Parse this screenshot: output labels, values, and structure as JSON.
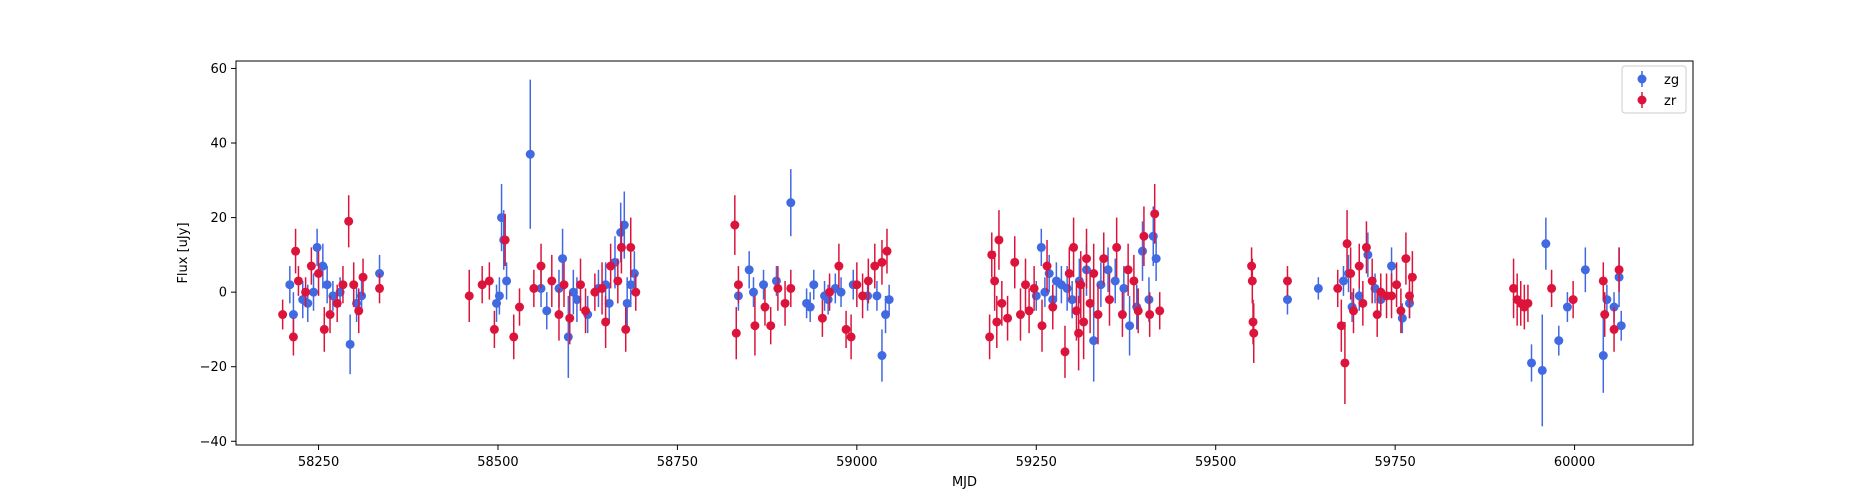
{
  "colors": {
    "zg": "#4169e1",
    "zr": "#dc143c",
    "axis": "#000000"
  },
  "chart_data": {
    "type": "scatter",
    "title": "",
    "xlabel": "MJD",
    "ylabel": "Flux [uJy]",
    "xlim": [
      58135,
      60165
    ],
    "ylim": [
      -41,
      62
    ],
    "xticks": [
      58250,
      58500,
      58750,
      59000,
      59250,
      59500,
      59750,
      60000
    ],
    "xtick_labels": [
      "58250",
      "58500",
      "58750",
      "59000",
      "59250",
      "59500",
      "59750",
      "60000"
    ],
    "yticks": [
      -40,
      -20,
      0,
      20,
      40,
      60
    ],
    "ytick_labels": [
      "−40",
      "−20",
      "0",
      "20",
      "40",
      "60"
    ],
    "grid": false,
    "legend": {
      "placement": "top-right",
      "entries": [
        "zg",
        "zr"
      ]
    },
    "error_bars": true,
    "series": [
      {
        "name": "zg",
        "color": "#4169e1",
        "points": [
          [
            58210,
            2,
            5
          ],
          [
            58215,
            -6,
            6
          ],
          [
            58228,
            -2,
            5
          ],
          [
            58235,
            -3,
            5
          ],
          [
            58243,
            0,
            5
          ],
          [
            58248,
            12,
            5
          ],
          [
            58256,
            7,
            6
          ],
          [
            58262,
            2,
            5
          ],
          [
            58270,
            -1,
            4
          ],
          [
            58280,
            0,
            4
          ],
          [
            58294,
            -14,
            8
          ],
          [
            58303,
            -3,
            5
          ],
          [
            58310,
            -1,
            4
          ],
          [
            58335,
            5,
            5
          ],
          [
            58498,
            -3,
            5
          ],
          [
            58502,
            -1,
            5
          ],
          [
            58505,
            20,
            9
          ],
          [
            58508,
            14,
            8
          ],
          [
            58512,
            3,
            5
          ],
          [
            58545,
            37,
            20
          ],
          [
            58560,
            1,
            5
          ],
          [
            58568,
            -5,
            5
          ],
          [
            58585,
            1,
            5
          ],
          [
            58590,
            9,
            8
          ],
          [
            58598,
            -12,
            11
          ],
          [
            58605,
            0,
            6
          ],
          [
            58610,
            -2,
            6
          ],
          [
            58625,
            -6,
            5
          ],
          [
            58640,
            1,
            5
          ],
          [
            58650,
            2,
            6
          ],
          [
            58655,
            -3,
            5
          ],
          [
            58663,
            8,
            7
          ],
          [
            58671,
            16,
            8
          ],
          [
            58676,
            18,
            9
          ],
          [
            58680,
            -3,
            7
          ],
          [
            58685,
            2,
            6
          ],
          [
            58690,
            5,
            6
          ],
          [
            58835,
            -1,
            4
          ],
          [
            58850,
            6,
            5
          ],
          [
            58856,
            0,
            4
          ],
          [
            58870,
            2,
            4
          ],
          [
            58888,
            3,
            4
          ],
          [
            58908,
            24,
            9
          ],
          [
            58930,
            -3,
            4
          ],
          [
            58935,
            -4,
            4
          ],
          [
            58940,
            2,
            4
          ],
          [
            58955,
            -1,
            4
          ],
          [
            58960,
            -2,
            4
          ],
          [
            58970,
            1,
            4
          ],
          [
            58978,
            0,
            4
          ],
          [
            58995,
            2,
            4
          ],
          [
            59015,
            -1,
            4
          ],
          [
            59028,
            -1,
            4
          ],
          [
            59035,
            -17,
            7
          ],
          [
            59040,
            -6,
            5
          ],
          [
            59045,
            -2,
            4
          ],
          [
            59250,
            -1,
            4
          ],
          [
            59257,
            12,
            5
          ],
          [
            59262,
            0,
            4
          ],
          [
            59268,
            5,
            5
          ],
          [
            59273,
            -2,
            4
          ],
          [
            59278,
            3,
            5
          ],
          [
            59285,
            2,
            5
          ],
          [
            59293,
            1,
            6
          ],
          [
            59300,
            -2,
            5
          ],
          [
            59310,
            3,
            6
          ],
          [
            59320,
            6,
            7
          ],
          [
            59330,
            -13,
            11
          ],
          [
            59340,
            2,
            6
          ],
          [
            59350,
            6,
            6
          ],
          [
            59360,
            3,
            6
          ],
          [
            59372,
            1,
            6
          ],
          [
            59380,
            -9,
            8
          ],
          [
            59390,
            -4,
            6
          ],
          [
            59398,
            11,
            8
          ],
          [
            59407,
            -2,
            6
          ],
          [
            59413,
            15,
            8
          ],
          [
            59417,
            9,
            6
          ],
          [
            59600,
            -2,
            4
          ],
          [
            59643,
            1,
            3
          ],
          [
            59678,
            3,
            4
          ],
          [
            59685,
            5,
            5
          ],
          [
            59690,
            -4,
            4
          ],
          [
            59700,
            -1,
            4
          ],
          [
            59712,
            10,
            6
          ],
          [
            59722,
            1,
            4
          ],
          [
            59730,
            -2,
            4
          ],
          [
            59745,
            7,
            5
          ],
          [
            59760,
            -7,
            4
          ],
          [
            59770,
            -3,
            4
          ],
          [
            59940,
            -19,
            5
          ],
          [
            59955,
            -21,
            15
          ],
          [
            59960,
            13,
            7
          ],
          [
            59978,
            -13,
            4
          ],
          [
            59990,
            -4,
            4
          ],
          [
            60015,
            6,
            6
          ],
          [
            60040,
            -17,
            10
          ],
          [
            60045,
            -2,
            4
          ],
          [
            60055,
            -4,
            4
          ],
          [
            60062,
            4,
            8
          ],
          [
            60065,
            -9,
            4
          ]
        ]
      },
      {
        "name": "zr",
        "color": "#dc143c",
        "points": [
          [
            58200,
            -6,
            4
          ],
          [
            58215,
            -12,
            5
          ],
          [
            58218,
            11,
            6
          ],
          [
            58222,
            3,
            4
          ],
          [
            58232,
            0,
            4
          ],
          [
            58240,
            7,
            5
          ],
          [
            58250,
            5,
            6
          ],
          [
            58258,
            -10,
            6
          ],
          [
            58266,
            -6,
            5
          ],
          [
            58276,
            -3,
            5
          ],
          [
            58284,
            2,
            5
          ],
          [
            58292,
            19,
            7
          ],
          [
            58299,
            2,
            6
          ],
          [
            58306,
            -5,
            6
          ],
          [
            58312,
            4,
            5
          ],
          [
            58335,
            1,
            4
          ],
          [
            58460,
            -1,
            7
          ],
          [
            58478,
            2,
            5
          ],
          [
            58488,
            3,
            5
          ],
          [
            58495,
            -10,
            5
          ],
          [
            58510,
            14,
            7
          ],
          [
            58522,
            -12,
            6
          ],
          [
            58530,
            -4,
            5
          ],
          [
            58550,
            1,
            5
          ],
          [
            58560,
            7,
            6
          ],
          [
            58575,
            3,
            7
          ],
          [
            58585,
            -6,
            7
          ],
          [
            58592,
            2,
            6
          ],
          [
            58600,
            -7,
            7
          ],
          [
            58615,
            2,
            7
          ],
          [
            58622,
            -5,
            6
          ],
          [
            58635,
            0,
            5
          ],
          [
            58645,
            1,
            7
          ],
          [
            58650,
            -8,
            7
          ],
          [
            58657,
            7,
            6
          ],
          [
            58667,
            3,
            6
          ],
          [
            58672,
            12,
            7
          ],
          [
            58678,
            -10,
            6
          ],
          [
            58685,
            12,
            8
          ],
          [
            58692,
            0,
            5
          ],
          [
            58830,
            18,
            8
          ],
          [
            58832,
            -11,
            7
          ],
          [
            58835,
            2,
            5
          ],
          [
            58858,
            -9,
            8
          ],
          [
            58872,
            -4,
            5
          ],
          [
            58880,
            -9,
            5
          ],
          [
            58890,
            1,
            6
          ],
          [
            58900,
            -3,
            6
          ],
          [
            58908,
            1,
            5
          ],
          [
            58952,
            -7,
            5
          ],
          [
            58962,
            0,
            5
          ],
          [
            58975,
            7,
            6
          ],
          [
            58985,
            -10,
            5
          ],
          [
            58992,
            -12,
            6
          ],
          [
            59000,
            2,
            6
          ],
          [
            59008,
            -1,
            6
          ],
          [
            59016,
            3,
            6
          ],
          [
            59025,
            7,
            6
          ],
          [
            59035,
            8,
            6
          ],
          [
            59042,
            11,
            6
          ],
          [
            59185,
            -12,
            6
          ],
          [
            59188,
            10,
            6
          ],
          [
            59192,
            3,
            8
          ],
          [
            59195,
            -8,
            7
          ],
          [
            59198,
            14,
            8
          ],
          [
            59202,
            -3,
            6
          ],
          [
            59210,
            -7,
            6
          ],
          [
            59220,
            8,
            7
          ],
          [
            59228,
            -6,
            7
          ],
          [
            59235,
            2,
            7
          ],
          [
            59240,
            -5,
            6
          ],
          [
            59247,
            1,
            6
          ],
          [
            59258,
            -9,
            7
          ],
          [
            59265,
            7,
            7
          ],
          [
            59273,
            -4,
            6
          ],
          [
            59290,
            -16,
            7
          ],
          [
            59296,
            5,
            7
          ],
          [
            59302,
            12,
            8
          ],
          [
            59306,
            -5,
            8
          ],
          [
            59309,
            -11,
            10
          ],
          [
            59312,
            2,
            9
          ],
          [
            59316,
            -8,
            10
          ],
          [
            59320,
            9,
            8
          ],
          [
            59325,
            -3,
            8
          ],
          [
            59330,
            5,
            8
          ],
          [
            59336,
            -6,
            8
          ],
          [
            59344,
            9,
            7
          ],
          [
            59352,
            -2,
            7
          ],
          [
            59362,
            12,
            8
          ],
          [
            59370,
            -6,
            6
          ],
          [
            59378,
            6,
            7
          ],
          [
            59386,
            3,
            7
          ],
          [
            59392,
            -5,
            6
          ],
          [
            59400,
            15,
            8
          ],
          [
            59408,
            -6,
            6
          ],
          [
            59415,
            21,
            8
          ],
          [
            59422,
            -5,
            5
          ],
          [
            59550,
            7,
            5
          ],
          [
            59551,
            3,
            6
          ],
          [
            59552,
            -8,
            6
          ],
          [
            59553,
            -11,
            8
          ],
          [
            59600,
            3,
            4
          ],
          [
            59670,
            1,
            5
          ],
          [
            59675,
            -9,
            7
          ],
          [
            59680,
            -19,
            11
          ],
          [
            59683,
            13,
            9
          ],
          [
            59688,
            5,
            7
          ],
          [
            59692,
            -5,
            6
          ],
          [
            59700,
            7,
            6
          ],
          [
            59705,
            -3,
            6
          ],
          [
            59710,
            12,
            7
          ],
          [
            59718,
            3,
            6
          ],
          [
            59725,
            -6,
            6
          ],
          [
            59730,
            0,
            5
          ],
          [
            59738,
            -1,
            6
          ],
          [
            59745,
            -1,
            6
          ],
          [
            59752,
            2,
            6
          ],
          [
            59758,
            -5,
            6
          ],
          [
            59765,
            9,
            7
          ],
          [
            59770,
            -1,
            6
          ],
          [
            59774,
            4,
            7
          ],
          [
            59915,
            1,
            8
          ],
          [
            59920,
            -2,
            7
          ],
          [
            59925,
            -3,
            6
          ],
          [
            59930,
            -4,
            6
          ],
          [
            59935,
            -3,
            5
          ],
          [
            59968,
            1,
            5
          ],
          [
            59998,
            -2,
            5
          ],
          [
            60040,
            3,
            5
          ],
          [
            60042,
            -6,
            6
          ],
          [
            60055,
            -10,
            6
          ],
          [
            60062,
            6,
            6
          ]
        ]
      }
    ]
  }
}
